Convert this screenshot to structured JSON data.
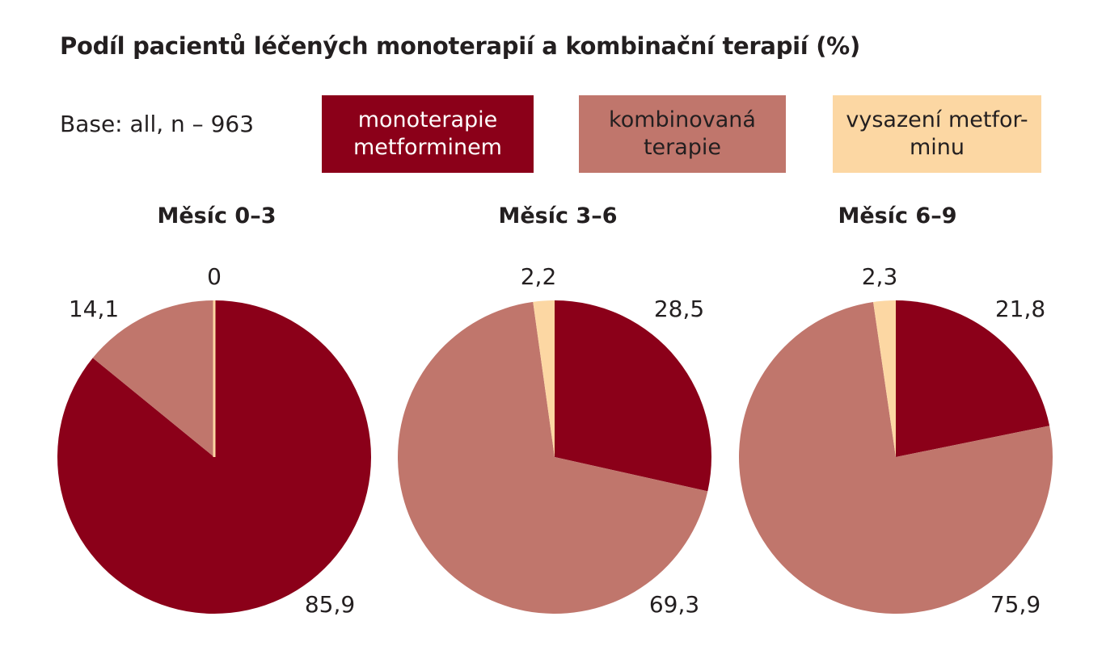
{
  "chart_data": {
    "type": "pie",
    "title": "Podíl pacientů léčených monoterapií a kombinační terapií (%)",
    "base_note": "Base: all, n – 963",
    "legend": [
      {
        "label": "monoterapie\nmetforminem",
        "color": "#8b0019",
        "text_color": "#ffffff"
      },
      {
        "label": "kombinovaná\nterapie",
        "color": "#c0766c",
        "text_color": "#231f20"
      },
      {
        "label": "vysazení metfor-\nminu",
        "color": "#fcd7a3",
        "text_color": "#231f20"
      }
    ],
    "charts": [
      {
        "title": "Měsíc 0–3",
        "values": [
          85.9,
          14.1,
          0
        ],
        "labels": [
          "85,9",
          "14,1",
          "0"
        ]
      },
      {
        "title": "Měsíc 3–6",
        "values": [
          28.5,
          69.3,
          2.2
        ],
        "labels": [
          "28,5",
          "69,3",
          "2,2"
        ]
      },
      {
        "title": "Měsíc 6–9",
        "values": [
          21.8,
          75.9,
          2.3
        ],
        "labels": [
          "21,8",
          "75,9",
          "2,3"
        ]
      }
    ]
  }
}
